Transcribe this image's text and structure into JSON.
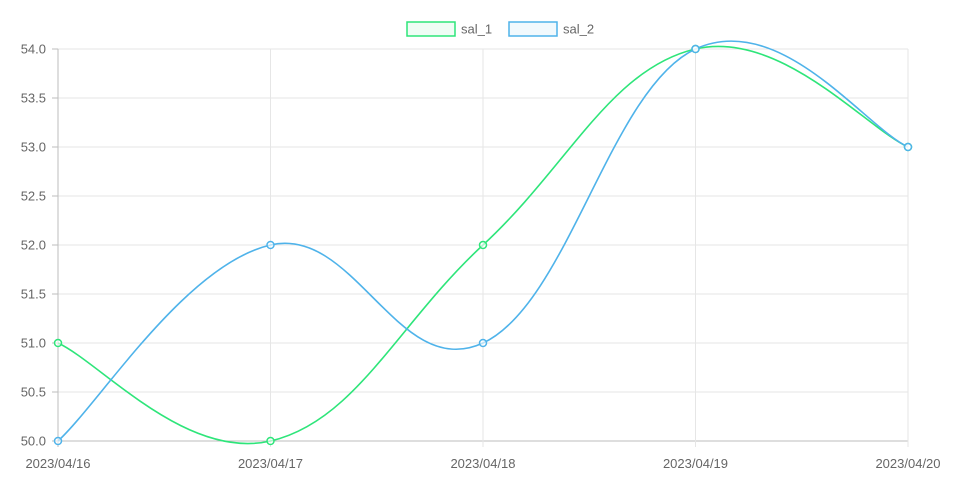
{
  "chart_data": {
    "type": "line",
    "categories": [
      "2023/04/16",
      "2023/04/17",
      "2023/04/18",
      "2023/04/19",
      "2023/04/20"
    ],
    "series": [
      {
        "name": "sal_1",
        "values": [
          51,
          50,
          52,
          54,
          53
        ],
        "color": "#2ee57a"
      },
      {
        "name": "sal_2",
        "values": [
          50,
          52,
          51,
          54,
          53
        ],
        "color": "#4fb3ea"
      }
    ],
    "ylim": [
      50,
      54
    ],
    "yticks": [
      "50.0",
      "50.5",
      "51.0",
      "51.5",
      "52.0",
      "52.5",
      "53.0",
      "53.5",
      "54.0"
    ],
    "grid": true,
    "legend": "top-center",
    "title": "",
    "xlabel": "",
    "ylabel": ""
  }
}
